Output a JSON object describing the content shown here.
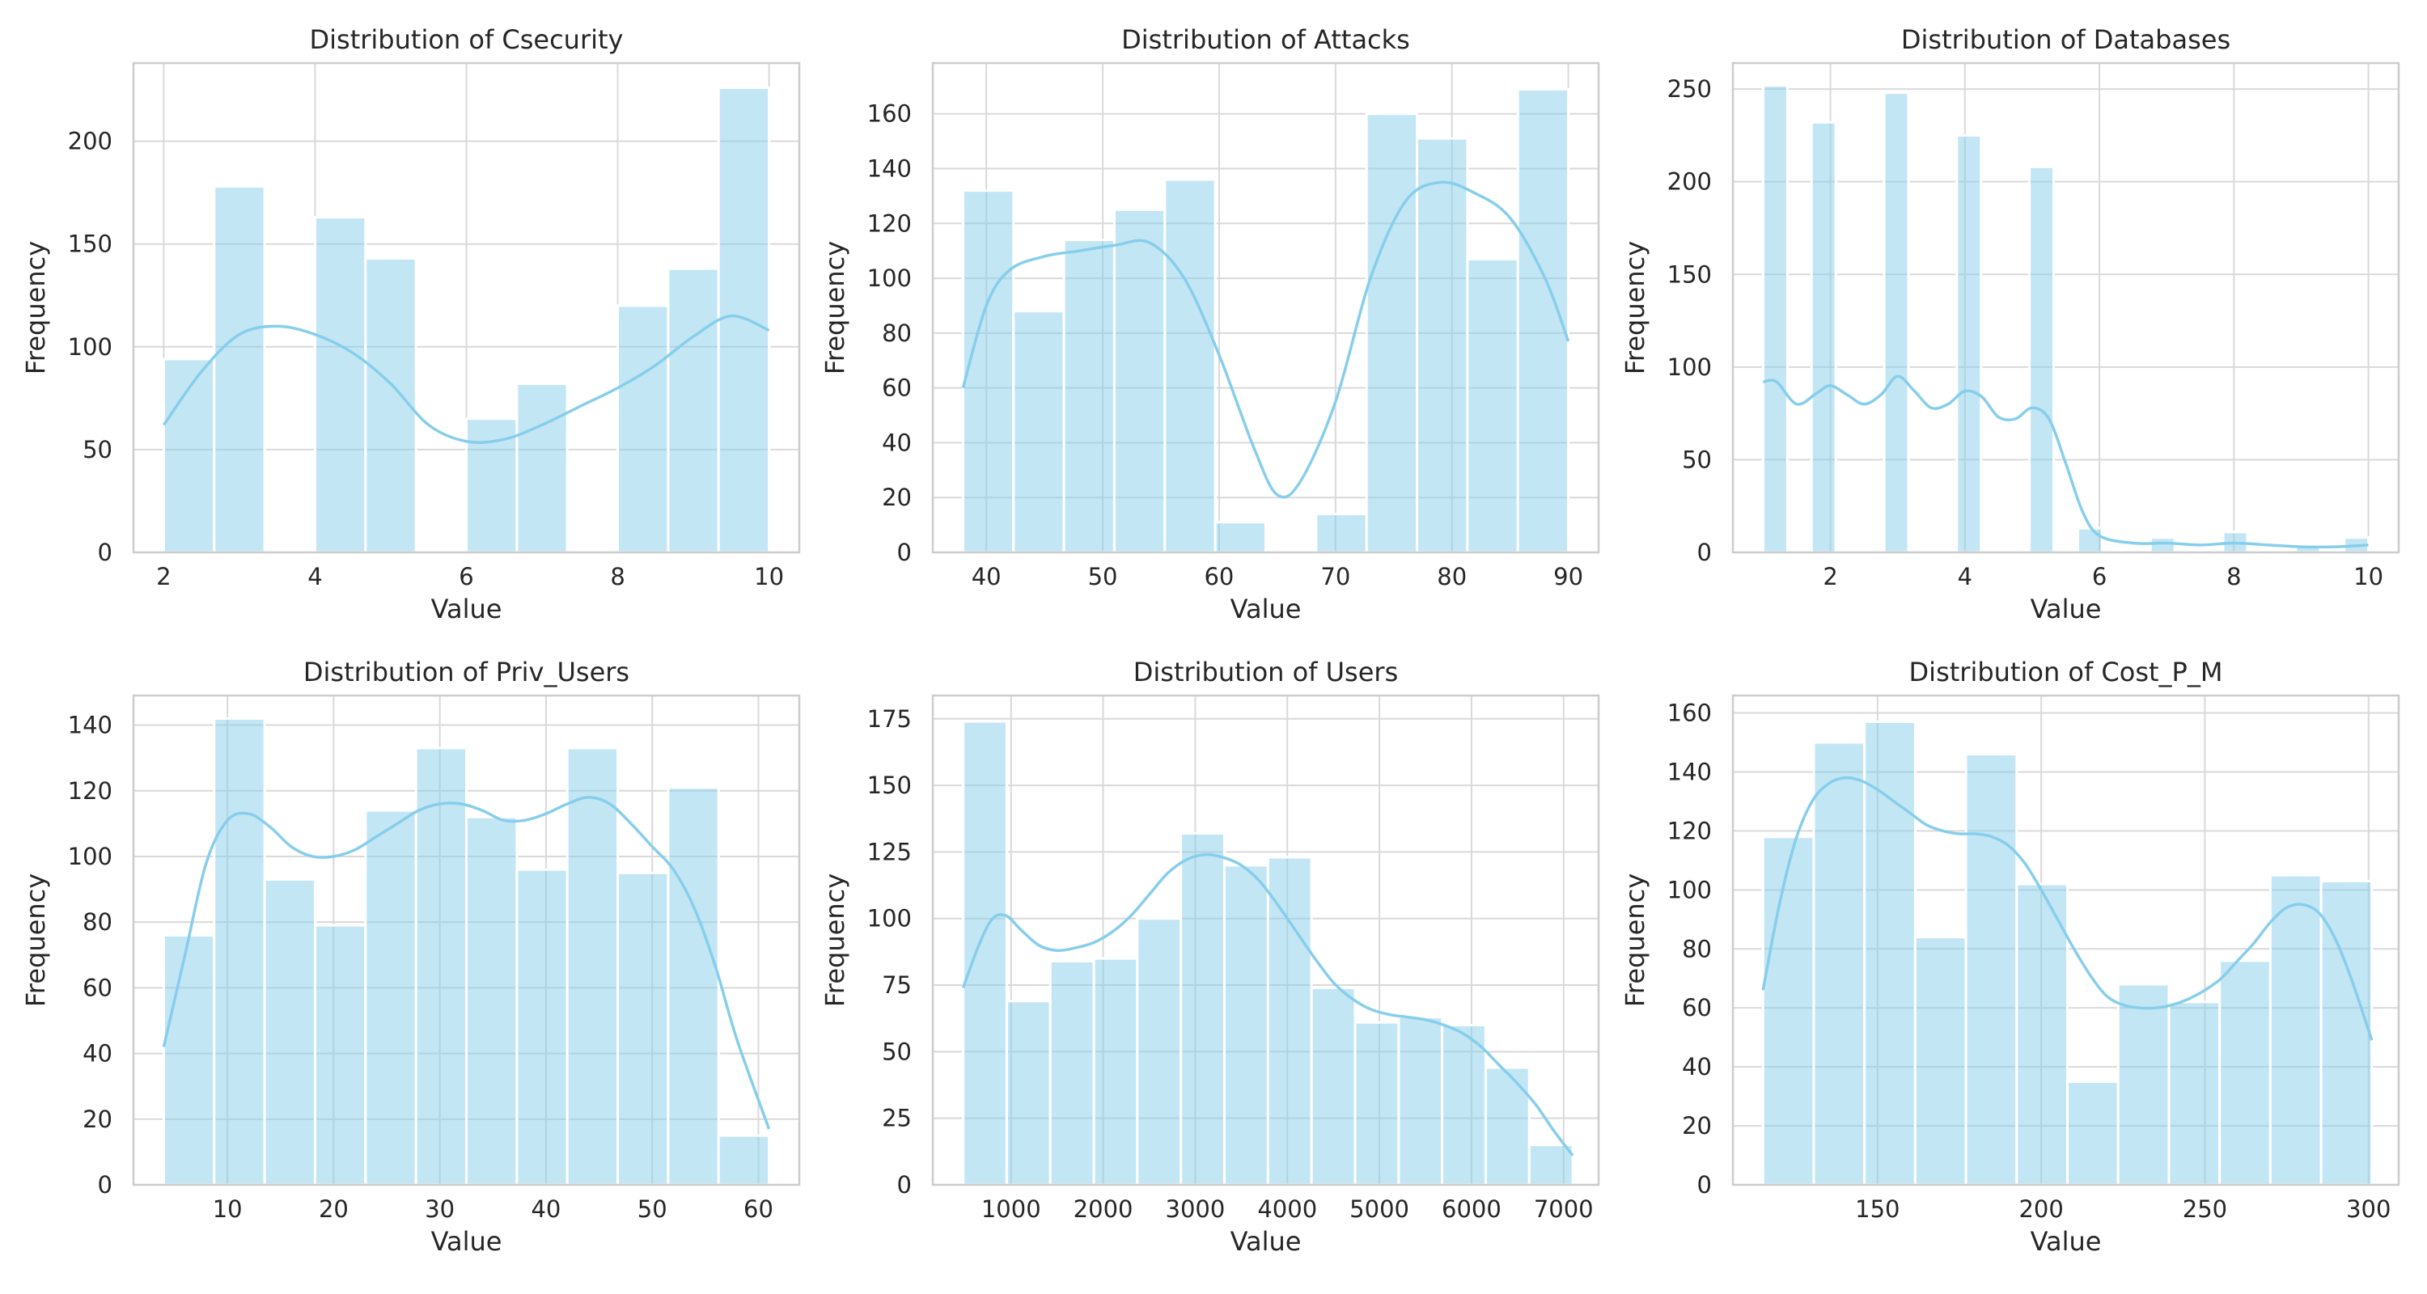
{
  "chart_data": [
    {
      "type": "bar",
      "title": "Distribution of Csecurity",
      "xlabel": "Value",
      "ylabel": "Frequency",
      "xlim": [
        1.6,
        10.4
      ],
      "ylim": [
        0,
        238
      ],
      "xticks": [
        2,
        4,
        6,
        8,
        10
      ],
      "yticks": [
        0,
        50,
        100,
        150,
        200
      ],
      "grid": true,
      "bins": [
        {
          "x0": 2.0,
          "x1": 2.667,
          "count": 94
        },
        {
          "x0": 2.667,
          "x1": 3.333,
          "count": 178
        },
        {
          "x0": 3.333,
          "x1": 4.0,
          "count": 0
        },
        {
          "x0": 4.0,
          "x1": 4.667,
          "count": 163
        },
        {
          "x0": 4.667,
          "x1": 5.333,
          "count": 143
        },
        {
          "x0": 5.333,
          "x1": 6.0,
          "count": 0
        },
        {
          "x0": 6.0,
          "x1": 6.667,
          "count": 65
        },
        {
          "x0": 6.667,
          "x1": 7.333,
          "count": 82
        },
        {
          "x0": 7.333,
          "x1": 8.0,
          "count": 0
        },
        {
          "x0": 8.0,
          "x1": 8.667,
          "count": 120
        },
        {
          "x0": 8.667,
          "x1": 9.333,
          "count": 138
        },
        {
          "x0": 9.333,
          "x1": 10.0,
          "count": 226
        }
      ],
      "kde": {
        "x": [
          2,
          2.5,
          3,
          3.5,
          4,
          4.5,
          5,
          5.5,
          6,
          6.5,
          7,
          7.5,
          8,
          8.5,
          9,
          9.5,
          10
        ],
        "y": [
          62,
          88,
          106,
          110,
          106,
          97,
          82,
          62,
          54,
          55,
          62,
          71,
          80,
          91,
          105,
          115,
          108
        ]
      }
    },
    {
      "type": "bar",
      "title": "Distribution of Attacks",
      "xlabel": "Value",
      "ylabel": "Frequency",
      "xlim": [
        35.4,
        92.6
      ],
      "ylim": [
        0,
        178.5
      ],
      "xticks": [
        40,
        50,
        60,
        70,
        80,
        90
      ],
      "yticks": [
        0,
        20,
        40,
        60,
        80,
        100,
        120,
        140,
        160
      ],
      "grid": true,
      "bins": [
        {
          "x0": 38.0,
          "x1": 42.333,
          "count": 132
        },
        {
          "x0": 42.333,
          "x1": 46.667,
          "count": 88
        },
        {
          "x0": 46.667,
          "x1": 51.0,
          "count": 114
        },
        {
          "x0": 51.0,
          "x1": 55.333,
          "count": 125
        },
        {
          "x0": 55.333,
          "x1": 59.667,
          "count": 136
        },
        {
          "x0": 59.667,
          "x1": 64.0,
          "count": 11
        },
        {
          "x0": 64.0,
          "x1": 68.333,
          "count": 0
        },
        {
          "x0": 68.333,
          "x1": 72.667,
          "count": 14
        },
        {
          "x0": 72.667,
          "x1": 77.0,
          "count": 160
        },
        {
          "x0": 77.0,
          "x1": 81.333,
          "count": 151
        },
        {
          "x0": 81.333,
          "x1": 85.667,
          "count": 107
        },
        {
          "x0": 85.667,
          "x1": 90.0,
          "count": 169
        }
      ],
      "kde": {
        "x": [
          38,
          40,
          42,
          45,
          48,
          51,
          54,
          57,
          60,
          63,
          65,
          67,
          70,
          73,
          76,
          79,
          82,
          85,
          88,
          90
        ],
        "y": [
          60,
          90,
          103,
          108,
          110,
          112,
          113,
          100,
          72,
          38,
          21,
          26,
          55,
          100,
          128,
          135,
          131,
          122,
          100,
          77
        ]
      }
    },
    {
      "type": "bar",
      "title": "Distribution of Databases",
      "xlabel": "Value",
      "ylabel": "Frequency",
      "xlim": [
        0.55,
        10.45
      ],
      "ylim": [
        0,
        264
      ],
      "xticks": [
        2,
        4,
        6,
        8,
        10
      ],
      "yticks": [
        0,
        50,
        100,
        150,
        200,
        250
      ],
      "grid": true,
      "bins": [
        {
          "x0": 1.0,
          "x1": 1.36,
          "count": 252
        },
        {
          "x0": 1.36,
          "x1": 1.72,
          "count": 0
        },
        {
          "x0": 1.72,
          "x1": 2.08,
          "count": 232
        },
        {
          "x0": 2.08,
          "x1": 2.44,
          "count": 0
        },
        {
          "x0": 2.44,
          "x1": 2.8,
          "count": 0
        },
        {
          "x0": 2.8,
          "x1": 3.16,
          "count": 248
        },
        {
          "x0": 3.16,
          "x1": 3.52,
          "count": 0
        },
        {
          "x0": 3.52,
          "x1": 3.88,
          "count": 0
        },
        {
          "x0": 3.88,
          "x1": 4.24,
          "count": 225
        },
        {
          "x0": 4.24,
          "x1": 4.6,
          "count": 0
        },
        {
          "x0": 4.6,
          "x1": 4.96,
          "count": 0
        },
        {
          "x0": 4.96,
          "x1": 5.32,
          "count": 208
        },
        {
          "x0": 5.32,
          "x1": 5.68,
          "count": 0
        },
        {
          "x0": 5.68,
          "x1": 6.04,
          "count": 13
        },
        {
          "x0": 6.04,
          "x1": 6.4,
          "count": 0
        },
        {
          "x0": 6.4,
          "x1": 6.76,
          "count": 0
        },
        {
          "x0": 6.76,
          "x1": 7.12,
          "count": 8
        },
        {
          "x0": 7.12,
          "x1": 7.48,
          "count": 0
        },
        {
          "x0": 7.48,
          "x1": 7.84,
          "count": 0
        },
        {
          "x0": 7.84,
          "x1": 8.2,
          "count": 11
        },
        {
          "x0": 8.2,
          "x1": 8.56,
          "count": 0
        },
        {
          "x0": 8.56,
          "x1": 8.92,
          "count": 0
        },
        {
          "x0": 8.92,
          "x1": 9.28,
          "count": 4
        },
        {
          "x0": 9.28,
          "x1": 9.64,
          "count": 0
        },
        {
          "x0": 9.64,
          "x1": 10.0,
          "count": 8
        }
      ],
      "kde": {
        "x": [
          1.0,
          1.2,
          1.5,
          1.8,
          2.0,
          2.25,
          2.5,
          2.75,
          3.0,
          3.25,
          3.5,
          3.75,
          4.0,
          4.25,
          4.5,
          4.75,
          5.0,
          5.25,
          5.5,
          5.75,
          6.0,
          6.5,
          7.0,
          7.5,
          8.0,
          8.5,
          9.0,
          9.5,
          10.0
        ],
        "y": [
          92,
          92,
          80,
          86,
          90,
          85,
          80,
          85,
          95,
          87,
          78,
          80,
          87,
          84,
          73,
          72,
          78,
          72,
          48,
          22,
          9,
          5,
          5,
          4,
          5,
          4,
          3,
          3,
          4
        ]
      }
    },
    {
      "type": "bar",
      "title": "Distribution of Priv_Users",
      "xlabel": "Value",
      "ylabel": "Frequency",
      "xlim": [
        1.15,
        63.85
      ],
      "ylim": [
        0,
        149
      ],
      "xticks": [
        10,
        20,
        30,
        40,
        50,
        60
      ],
      "yticks": [
        0,
        20,
        40,
        60,
        80,
        100,
        120,
        140
      ],
      "grid": true,
      "bins": [
        {
          "x0": 4.0,
          "x1": 8.75,
          "count": 76
        },
        {
          "x0": 8.75,
          "x1": 13.5,
          "count": 142
        },
        {
          "x0": 13.5,
          "x1": 18.25,
          "count": 93
        },
        {
          "x0": 18.25,
          "x1": 23.0,
          "count": 79
        },
        {
          "x0": 23.0,
          "x1": 27.75,
          "count": 114
        },
        {
          "x0": 27.75,
          "x1": 32.5,
          "count": 133
        },
        {
          "x0": 32.5,
          "x1": 37.25,
          "count": 112
        },
        {
          "x0": 37.25,
          "x1": 42.0,
          "count": 96
        },
        {
          "x0": 42.0,
          "x1": 46.75,
          "count": 133
        },
        {
          "x0": 46.75,
          "x1": 51.5,
          "count": 95
        },
        {
          "x0": 51.5,
          "x1": 56.25,
          "count": 121
        },
        {
          "x0": 56.25,
          "x1": 61.0,
          "count": 15
        }
      ],
      "kde": {
        "x": [
          4,
          6,
          8,
          10,
          12,
          14,
          16,
          18,
          20,
          22,
          24,
          26,
          28,
          30,
          32,
          34,
          36,
          38,
          40,
          42,
          44,
          46,
          48,
          50,
          52,
          54,
          56,
          58,
          61
        ],
        "y": [
          42,
          70,
          98,
          111,
          113,
          109,
          103,
          100,
          100,
          102,
          106,
          110,
          114,
          116,
          116,
          114,
          111,
          111,
          113,
          116,
          118,
          116,
          110,
          103,
          96,
          84,
          66,
          44,
          17
        ]
      }
    },
    {
      "type": "bar",
      "title": "Distribution of Users",
      "xlabel": "Value",
      "ylabel": "Frequency",
      "xlim": [
        150,
        7380
      ],
      "ylim": [
        0,
        183.75
      ],
      "xticks": [
        1000,
        2000,
        3000,
        4000,
        5000,
        6000,
        7000
      ],
      "yticks": [
        0,
        25,
        50,
        75,
        100,
        125,
        150,
        175
      ],
      "grid": true,
      "bins": [
        {
          "x0": 480,
          "x1": 953,
          "count": 174
        },
        {
          "x0": 953,
          "x1": 1426,
          "count": 69
        },
        {
          "x0": 1426,
          "x1": 1899,
          "count": 84
        },
        {
          "x0": 1899,
          "x1": 2371,
          "count": 85
        },
        {
          "x0": 2371,
          "x1": 2844,
          "count": 100
        },
        {
          "x0": 2844,
          "x1": 3317,
          "count": 132
        },
        {
          "x0": 3317,
          "x1": 3790,
          "count": 120
        },
        {
          "x0": 3790,
          "x1": 4263,
          "count": 123
        },
        {
          "x0": 4263,
          "x1": 4736,
          "count": 74
        },
        {
          "x0": 4736,
          "x1": 5209,
          "count": 61
        },
        {
          "x0": 5209,
          "x1": 5681,
          "count": 63
        },
        {
          "x0": 5681,
          "x1": 6154,
          "count": 60
        },
        {
          "x0": 6154,
          "x1": 6627,
          "count": 44
        },
        {
          "x0": 6627,
          "x1": 7100,
          "count": 15
        }
      ],
      "kde": {
        "x": [
          480,
          650,
          800,
          950,
          1100,
          1300,
          1500,
          1700,
          1900,
          2100,
          2300,
          2500,
          2700,
          2900,
          3100,
          3300,
          3500,
          3700,
          3900,
          4100,
          4300,
          4500,
          4700,
          4900,
          5100,
          5300,
          5500,
          5700,
          5900,
          6100,
          6300,
          6500,
          6700,
          6900,
          7100
        ],
        "y": [
          74,
          90,
          100,
          101,
          96,
          90,
          88,
          89,
          91,
          95,
          101,
          109,
          117,
          122,
          124,
          123,
          120,
          114,
          105,
          95,
          85,
          76,
          70,
          66,
          64,
          63,
          62,
          60,
          57,
          52,
          45,
          38,
          30,
          20,
          11
        ]
      }
    },
    {
      "type": "bar",
      "title": "Distribution of Cost_P_M",
      "xlabel": "Value",
      "ylabel": "Frequency",
      "xlim": [
        105.8,
        309.2
      ],
      "ylim": [
        0,
        165.9
      ],
      "xticks": [
        150,
        200,
        250,
        300
      ],
      "yticks": [
        0,
        20,
        40,
        60,
        80,
        100,
        120,
        140,
        160
      ],
      "grid": true,
      "bins": [
        {
          "x0": 115.0,
          "x1": 130.5,
          "count": 118
        },
        {
          "x0": 130.5,
          "x1": 146.0,
          "count": 150
        },
        {
          "x0": 146.0,
          "x1": 161.5,
          "count": 157
        },
        {
          "x0": 161.5,
          "x1": 177.0,
          "count": 84
        },
        {
          "x0": 177.0,
          "x1": 192.5,
          "count": 146
        },
        {
          "x0": 192.5,
          "x1": 208.0,
          "count": 102
        },
        {
          "x0": 208.0,
          "x1": 223.5,
          "count": 35
        },
        {
          "x0": 223.5,
          "x1": 239.0,
          "count": 68
        },
        {
          "x0": 239.0,
          "x1": 254.5,
          "count": 62
        },
        {
          "x0": 254.5,
          "x1": 270.0,
          "count": 76
        },
        {
          "x0": 270.0,
          "x1": 285.5,
          "count": 105
        },
        {
          "x0": 285.5,
          "x1": 301.0,
          "count": 103
        }
      ],
      "kde": {
        "x": [
          115,
          120,
          125,
          130,
          135,
          140,
          145,
          150,
          155,
          160,
          165,
          170,
          175,
          180,
          185,
          190,
          195,
          200,
          205,
          210,
          215,
          220,
          225,
          230,
          235,
          240,
          245,
          250,
          255,
          260,
          265,
          270,
          275,
          280,
          285,
          290,
          295,
          301
        ],
        "y": [
          66,
          95,
          117,
          130,
          136,
          138,
          137,
          134,
          130,
          126,
          122,
          120,
          119,
          119,
          118,
          115,
          109,
          100,
          90,
          80,
          71,
          64,
          61,
          60,
          60,
          61,
          63,
          66,
          70,
          76,
          82,
          89,
          94,
          95,
          92,
          83,
          69,
          49
        ]
      }
    }
  ]
}
